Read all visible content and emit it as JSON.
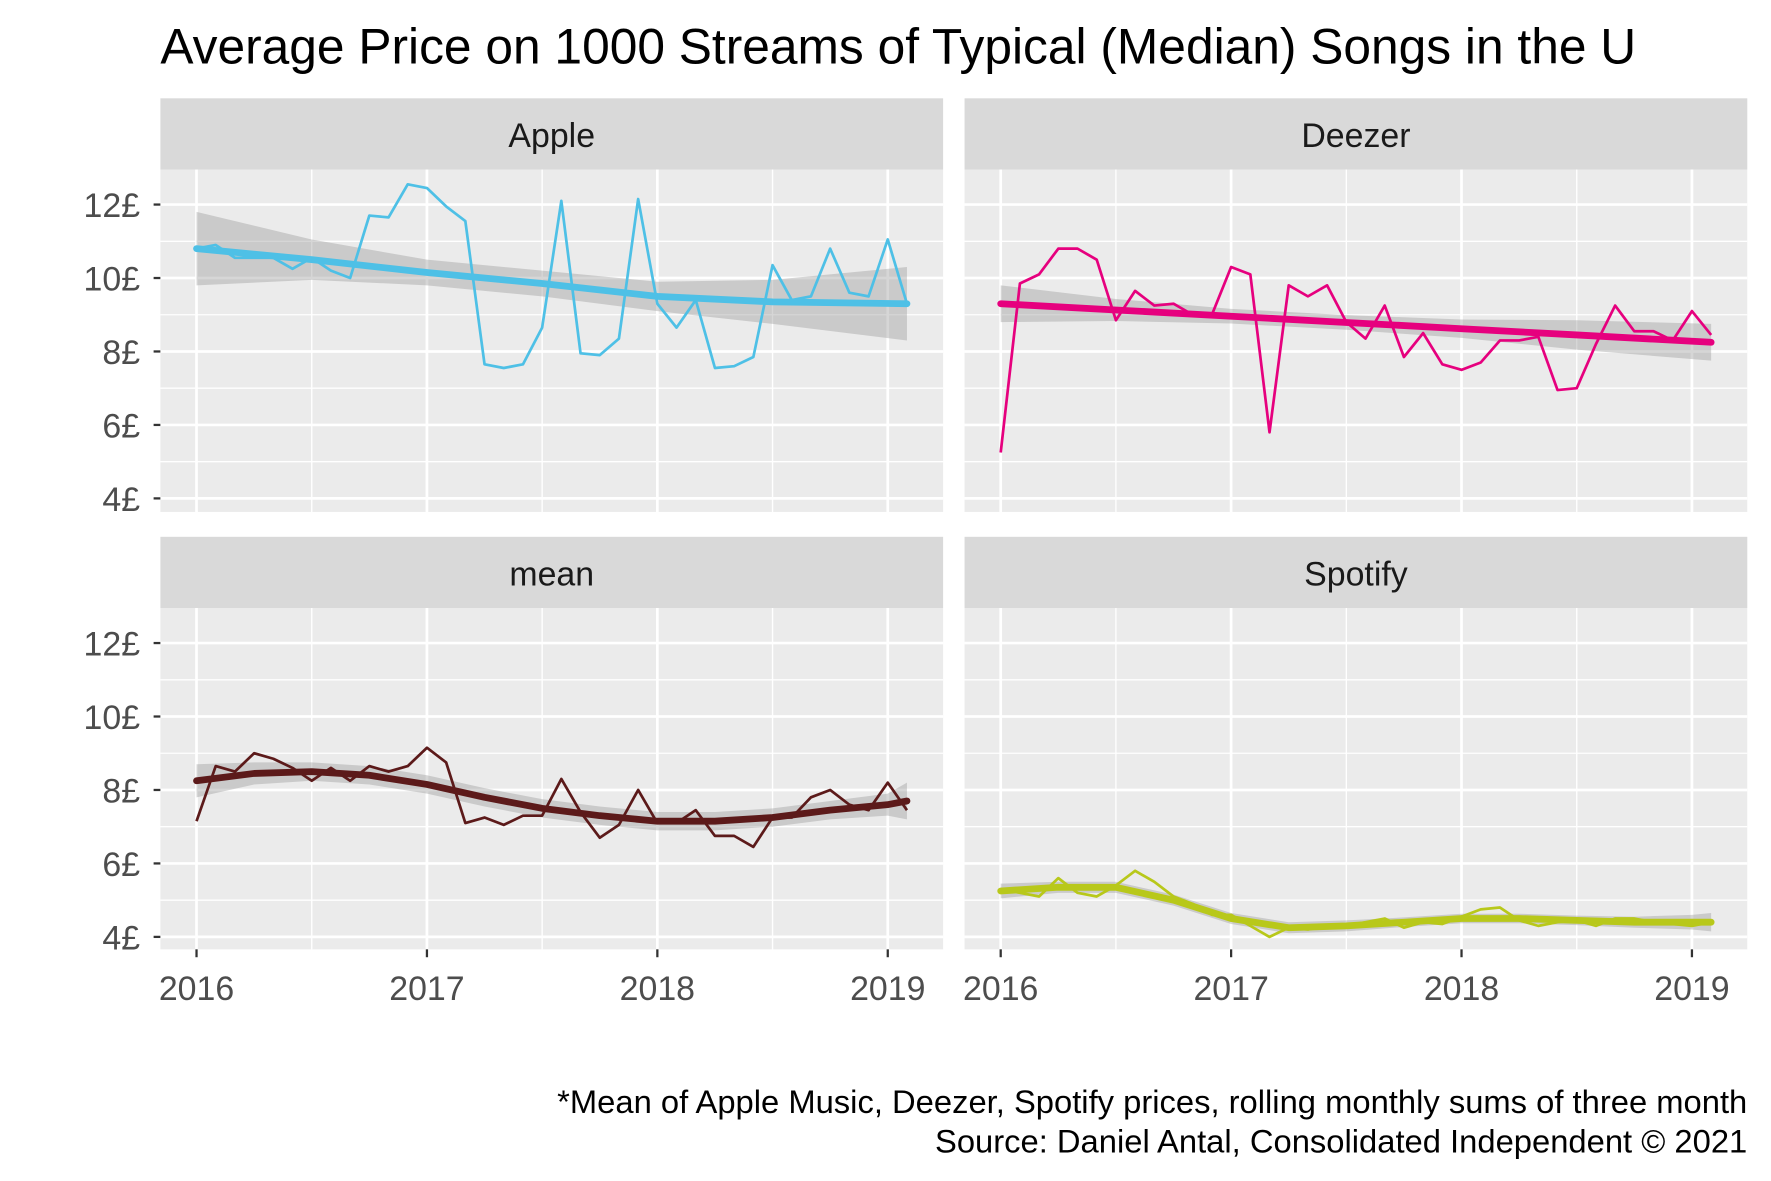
{
  "chart_data": {
    "type": "line",
    "title": "Average Price on 1000 Streams of Typical (Median) Songs in the U",
    "caption": [
      "*Mean of Apple Music, Deezer, Spotify prices, rolling monthly sums of three month",
      "Source: Daniel Antal, Consolidated Independent © 2021"
    ],
    "x_tick_labels": [
      "2016",
      "2017",
      "2018",
      "2019"
    ],
    "y_tick_values": [
      4,
      6,
      8,
      10,
      12
    ],
    "y_tick_labels": [
      "4£",
      "6£",
      "8£",
      "10£",
      "12£"
    ],
    "ylim": [
      3.6,
      13.1
    ],
    "xlim": [
      "2015-11",
      "2019-03"
    ],
    "grid": true,
    "x": [
      "2016-01",
      "2016-02",
      "2016-03",
      "2016-04",
      "2016-05",
      "2016-06",
      "2016-07",
      "2016-08",
      "2016-09",
      "2016-10",
      "2016-11",
      "2016-12",
      "2017-01",
      "2017-02",
      "2017-03",
      "2017-04",
      "2017-05",
      "2017-06",
      "2017-07",
      "2017-08",
      "2017-09",
      "2017-10",
      "2017-11",
      "2017-12",
      "2018-01",
      "2018-02",
      "2018-03",
      "2018-04",
      "2018-05",
      "2018-06",
      "2018-07",
      "2018-08",
      "2018-09",
      "2018-10",
      "2018-11",
      "2018-12",
      "2019-01",
      "2019-02"
    ],
    "panels": [
      {
        "name": "Apple",
        "color": "#4ec0e6",
        "values": [
          10.8,
          10.9,
          10.55,
          10.55,
          10.55,
          10.25,
          10.55,
          10.2,
          10.0,
          11.7,
          11.65,
          12.55,
          12.45,
          11.95,
          11.55,
          7.65,
          7.55,
          7.65,
          8.65,
          12.1,
          7.95,
          7.9,
          8.35,
          12.15,
          9.3,
          8.65,
          9.4,
          7.55,
          7.6,
          7.85,
          10.35,
          9.4,
          9.5,
          10.8,
          9.6,
          9.5,
          11.05,
          9.3
        ],
        "smooth": {
          "x": [
            "2016-01",
            "2016-07",
            "2017-01",
            "2017-07",
            "2018-01",
            "2018-07",
            "2019-02"
          ],
          "fit": [
            10.8,
            10.5,
            10.15,
            9.85,
            9.5,
            9.35,
            9.3
          ],
          "lower": [
            9.8,
            9.95,
            9.8,
            9.5,
            9.1,
            8.75,
            8.3
          ],
          "upper": [
            11.8,
            11.05,
            10.5,
            10.2,
            9.9,
            9.95,
            10.3
          ]
        }
      },
      {
        "name": "Deezer",
        "color": "#e6007e",
        "values": [
          5.25,
          9.85,
          10.1,
          10.8,
          10.8,
          10.5,
          8.85,
          9.65,
          9.25,
          9.3,
          9.0,
          9.0,
          10.3,
          10.1,
          5.8,
          9.8,
          9.5,
          9.8,
          8.8,
          8.35,
          9.25,
          7.85,
          8.5,
          7.65,
          7.5,
          7.7,
          8.3,
          8.3,
          8.4,
          6.95,
          7.0,
          8.2,
          9.25,
          8.55,
          8.55,
          8.3,
          9.1,
          8.45
        ],
        "smooth": {
          "x": [
            "2016-01",
            "2016-07",
            "2017-01",
            "2017-07",
            "2018-01",
            "2018-07",
            "2019-02"
          ],
          "fit": [
            9.3,
            9.13,
            8.96,
            8.79,
            8.62,
            8.45,
            8.25
          ],
          "lower": [
            8.8,
            8.83,
            8.76,
            8.59,
            8.37,
            8.05,
            7.75
          ],
          "upper": [
            9.8,
            9.43,
            9.16,
            8.99,
            8.87,
            8.85,
            8.75
          ]
        }
      },
      {
        "name": "mean",
        "color": "#5c1a1a",
        "values": [
          7.15,
          8.65,
          8.5,
          9.0,
          8.85,
          8.6,
          8.25,
          8.6,
          8.25,
          8.65,
          8.5,
          8.65,
          9.15,
          8.75,
          7.1,
          7.25,
          7.05,
          7.3,
          7.3,
          8.3,
          7.4,
          6.7,
          7.05,
          8.0,
          7.1,
          7.1,
          7.45,
          6.75,
          6.75,
          6.45,
          7.25,
          7.25,
          7.8,
          8.0,
          7.6,
          7.45,
          8.2,
          7.45
        ],
        "smooth": {
          "x": [
            "2016-01",
            "2016-04",
            "2016-07",
            "2016-10",
            "2017-01",
            "2017-04",
            "2017-07",
            "2017-10",
            "2018-01",
            "2018-04",
            "2018-07",
            "2018-10",
            "2019-01",
            "2019-02"
          ],
          "fit": [
            8.25,
            8.45,
            8.5,
            8.4,
            8.15,
            7.8,
            7.5,
            7.3,
            7.15,
            7.15,
            7.25,
            7.45,
            7.6,
            7.7
          ],
          "lower": [
            7.8,
            8.15,
            8.25,
            8.15,
            7.9,
            7.55,
            7.25,
            7.05,
            6.9,
            6.9,
            7.0,
            7.2,
            7.3,
            7.2
          ],
          "upper": [
            8.7,
            8.75,
            8.75,
            8.65,
            8.4,
            8.05,
            7.75,
            7.55,
            7.4,
            7.4,
            7.5,
            7.7,
            7.9,
            8.2
          ]
        }
      },
      {
        "name": "Spotify",
        "color": "#b8c81a",
        "values": [
          5.3,
          5.2,
          5.1,
          5.6,
          5.2,
          5.1,
          5.4,
          5.8,
          5.5,
          5.1,
          4.9,
          4.6,
          4.6,
          4.3,
          4.0,
          4.25,
          4.2,
          4.3,
          4.3,
          4.4,
          4.5,
          4.25,
          4.4,
          4.35,
          4.55,
          4.75,
          4.8,
          4.45,
          4.3,
          4.4,
          4.45,
          4.3,
          4.5,
          4.5,
          4.4,
          4.35,
          4.3,
          4.4
        ],
        "smooth": {
          "x": [
            "2016-01",
            "2016-04",
            "2016-07",
            "2016-10",
            "2017-01",
            "2017-04",
            "2017-07",
            "2017-10",
            "2018-01",
            "2018-04",
            "2018-07",
            "2018-10",
            "2019-01",
            "2019-02"
          ],
          "fit": [
            5.25,
            5.35,
            5.35,
            5.0,
            4.5,
            4.25,
            4.3,
            4.4,
            4.5,
            4.5,
            4.45,
            4.4,
            4.4,
            4.4
          ],
          "lower": [
            5.05,
            5.2,
            5.2,
            4.85,
            4.35,
            4.1,
            4.15,
            4.27,
            4.37,
            4.37,
            4.32,
            4.25,
            4.2,
            4.15
          ],
          "upper": [
            5.45,
            5.5,
            5.5,
            5.15,
            4.65,
            4.4,
            4.45,
            4.53,
            4.63,
            4.63,
            4.58,
            4.55,
            4.6,
            4.65
          ]
        }
      }
    ]
  }
}
